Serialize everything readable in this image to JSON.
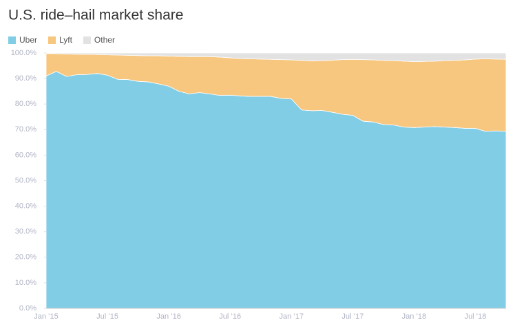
{
  "chart_data": {
    "type": "stacked_area",
    "title": "U.S. ride–hail market share",
    "categories": [
      "Jan ’15",
      null,
      null,
      null,
      null,
      null,
      "Jul ’15",
      null,
      null,
      null,
      null,
      null,
      "Jan ’16",
      null,
      null,
      null,
      null,
      null,
      "Jul ’16",
      null,
      null,
      null,
      null,
      null,
      "Jan ’17",
      null,
      null,
      null,
      null,
      null,
      "Jul ’17",
      null,
      null,
      null,
      null,
      null,
      "Jan ’18",
      null,
      null,
      null,
      null,
      null,
      "Jul ’18",
      null,
      null,
      null
    ],
    "series": [
      {
        "name": "Uber",
        "color": "#82cde6",
        "values": [
          91,
          92.8,
          90.8,
          91.5,
          91.6,
          92,
          91.3,
          89.7,
          89.6,
          88.9,
          88.7,
          87.9,
          87,
          85,
          84,
          84.5,
          84,
          83.4,
          83.5,
          83.2,
          83,
          83,
          83,
          82.2,
          82,
          77.7,
          77.4,
          77.5,
          76.8,
          76,
          75.6,
          73.3,
          73,
          72,
          71.8,
          71,
          70.8,
          71,
          71.2,
          71,
          70.8,
          70.5,
          70.5,
          69.3,
          69.5,
          69.3
        ]
      },
      {
        "name": "Lyft",
        "color": "#f7c67f",
        "values": [
          8.8,
          6.9,
          8.8,
          8,
          7.9,
          7.4,
          8,
          9.5,
          9.5,
          10.1,
          10.2,
          11,
          11.8,
          13.7,
          14.6,
          14.1,
          14.6,
          15,
          14.6,
          14.6,
          14.7,
          14.6,
          14.5,
          15.2,
          15.3,
          19.4,
          19.5,
          19.5,
          20.4,
          21.4,
          21.9,
          24.1,
          24.3,
          25.1,
          25.2,
          25.8,
          25.8,
          25.7,
          25.6,
          26,
          26.3,
          26.8,
          27.1,
          28.4,
          28.1,
          28.2
        ]
      },
      {
        "name": "Other",
        "color": "#e2e2e2",
        "values": [
          0.2,
          0.3,
          0.4,
          0.5,
          0.5,
          0.6,
          0.7,
          0.8,
          0.9,
          1,
          1.1,
          1.1,
          1.2,
          1.3,
          1.4,
          1.4,
          1.4,
          1.6,
          1.9,
          2.2,
          2.3,
          2.4,
          2.5,
          2.6,
          2.7,
          2.9,
          3.1,
          3,
          2.8,
          2.6,
          2.5,
          2.6,
          2.7,
          2.9,
          3,
          3.2,
          3.4,
          3.3,
          3.2,
          3,
          2.9,
          2.7,
          2.4,
          2.3,
          2.4,
          2.5
        ]
      }
    ],
    "ylim": [
      0,
      100
    ],
    "yticks": [
      {
        "value": 0,
        "label": "0.0%"
      },
      {
        "value": 10,
        "label": "10.0%"
      },
      {
        "value": 20,
        "label": "20.0%"
      },
      {
        "value": 30,
        "label": "30.0%"
      },
      {
        "value": 40,
        "label": "40.0%"
      },
      {
        "value": 50,
        "label": "50.0%"
      },
      {
        "value": 60,
        "label": "60.0%"
      },
      {
        "value": 70,
        "label": "70.0%"
      },
      {
        "value": 80,
        "label": "80.0%"
      },
      {
        "value": 90,
        "label": "90.0%"
      },
      {
        "value": 100,
        "label": "100.0%"
      }
    ],
    "legend": "top-left"
  }
}
